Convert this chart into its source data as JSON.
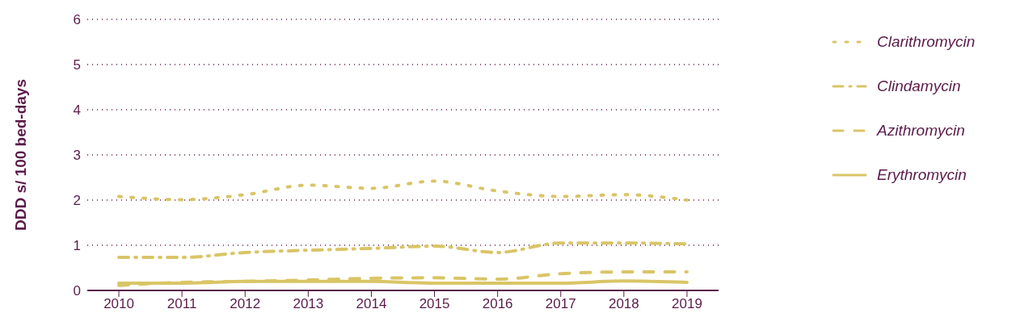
{
  "chart_data": {
    "type": "line",
    "ylabel": "DDD s/ 100 bed-days",
    "categories": [
      "2010",
      "2011",
      "2012",
      "2013",
      "2014",
      "2015",
      "2016",
      "2017",
      "2018",
      "2019"
    ],
    "series": [
      {
        "name": "Clarithromycin",
        "color": "#d9c566",
        "line_style": "dotted",
        "values": [
          2.08,
          2.01,
          2.12,
          2.33,
          2.26,
          2.42,
          2.2,
          2.08,
          2.12,
          2.0
        ]
      },
      {
        "name": "Clindamycin",
        "color": "#d9c566",
        "line_style": "dashdot",
        "values": [
          0.73,
          0.73,
          0.84,
          0.89,
          0.93,
          0.98,
          0.84,
          1.05,
          1.05,
          1.03
        ]
      },
      {
        "name": "Azithromycin",
        "color": "#d9c566",
        "line_style": "dashed",
        "values": [
          0.11,
          0.18,
          0.2,
          0.23,
          0.27,
          0.28,
          0.25,
          0.37,
          0.41,
          0.41
        ]
      },
      {
        "name": "Erythromycin",
        "color": "#d9c566",
        "line_style": "solid",
        "values": [
          0.16,
          0.16,
          0.2,
          0.2,
          0.2,
          0.16,
          0.16,
          0.16,
          0.21,
          0.18
        ]
      }
    ],
    "ylim": [
      0,
      6
    ],
    "yticks": [
      0,
      1,
      2,
      3,
      4,
      5,
      6
    ],
    "grid": "y",
    "legend": "right",
    "marker": "none"
  }
}
